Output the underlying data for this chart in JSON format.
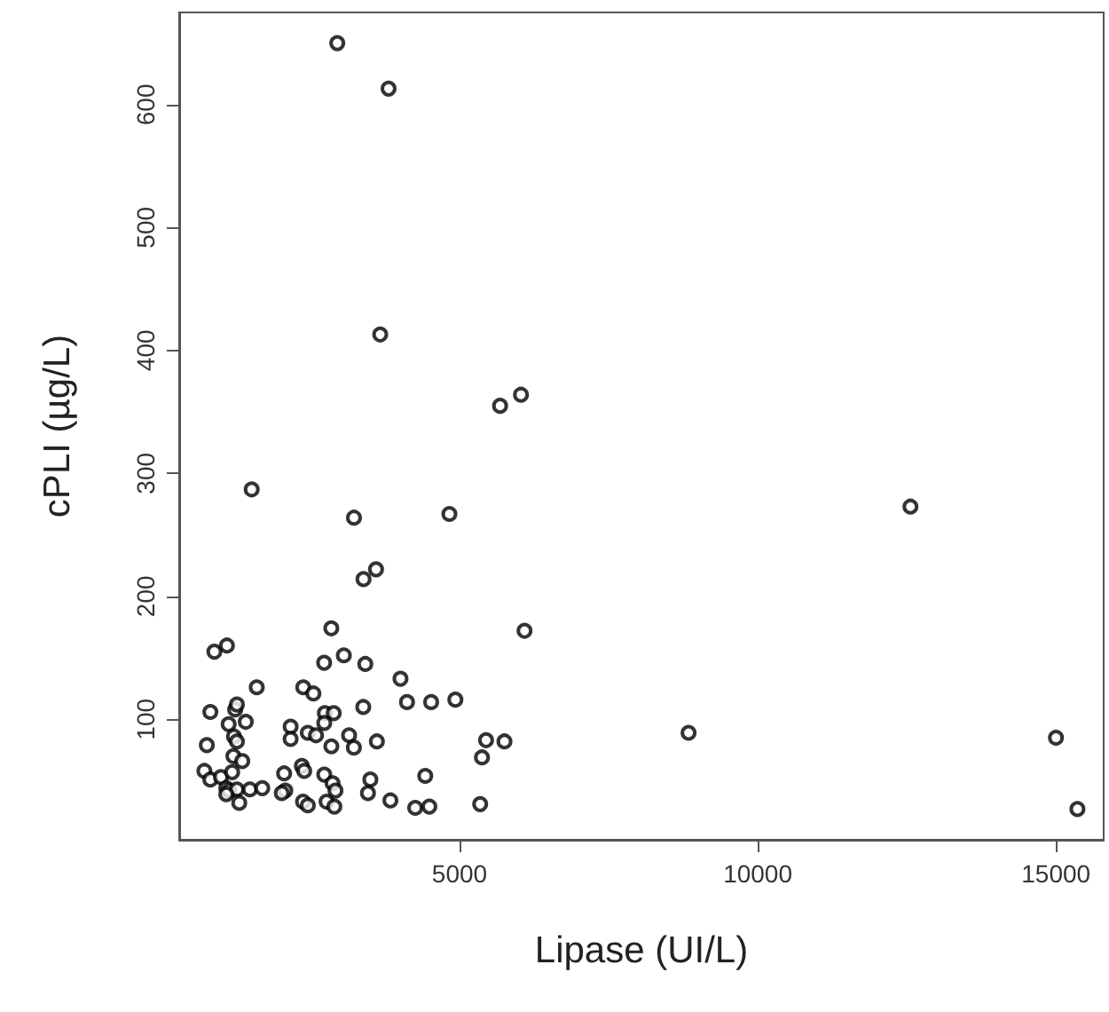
{
  "chart_data": {
    "type": "scatter",
    "xlabel": "Lipase (UI/L)",
    "ylabel": "cPLI (µg/L)",
    "xlim": [
      300,
      15800
    ],
    "xticks": [
      5000,
      10000,
      15000
    ],
    "ylim": [
      2,
      675
    ],
    "yticks": [
      100,
      200,
      300,
      400,
      500,
      600
    ],
    "marker": "circle",
    "series": [
      {
        "color": "#000000",
        "x": [
          2950,
          3810,
          3670,
          5680,
          6030,
          1515,
          12560,
          4830,
          3230,
          3600,
          3390,
          6090,
          2850,
          1100,
          890,
          3060,
          2730,
          3420,
          4010,
          1600,
          2380,
          2550,
          822,
          1238,
          1267,
          1416,
          1129,
          3386,
          4119,
          4524,
          4930,
          2742,
          2890,
          2732,
          2168,
          2168,
          2456,
          2593,
          1218,
          1267,
          763,
          2851,
          3148,
          3228,
          3614,
          5445,
          5376,
          5753,
          4425,
          5346,
          4257,
          4494,
          3841,
          3505,
          3465,
          1208,
          1357,
          722,
          822,
          1000,
          1188,
          1089,
          1138,
          1267,
          1089,
          1307,
          1485,
          1693,
          2059,
          2356,
          2396,
          2079,
          2020,
          2732,
          2871,
          2920,
          2771,
          2901,
          2376,
          2456,
          8840,
          15000,
          15360
        ],
        "values": [
          650,
          613,
          413,
          355,
          364,
          287,
          273,
          267,
          264,
          222,
          214,
          172,
          174,
          160,
          155,
          152,
          146,
          145,
          133,
          126,
          126,
          121,
          106,
          108,
          112,
          98,
          96,
          110,
          114,
          114,
          116,
          105,
          105,
          97,
          94,
          84,
          89,
          87,
          86,
          82,
          79,
          78,
          87,
          77,
          82,
          83,
          69,
          82,
          54,
          31,
          28,
          29,
          34,
          51,
          40,
          70,
          66,
          58,
          51,
          53,
          57,
          44,
          42,
          43,
          39,
          32,
          43,
          44,
          56,
          62,
          58,
          42,
          40,
          55,
          48,
          42,
          33,
          29,
          33,
          30,
          89,
          85,
          27
        ]
      }
    ]
  }
}
